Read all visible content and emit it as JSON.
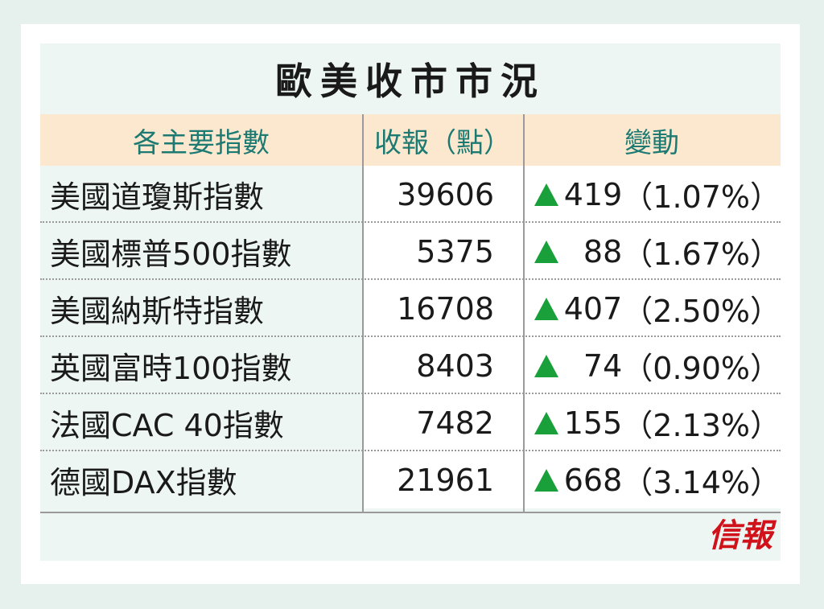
{
  "title": "歐美收市市況",
  "headers": {
    "index": "各主要指數",
    "close": "收報（點）",
    "change": "變動"
  },
  "rows": [
    {
      "name": "美國道瓊斯指數",
      "close": "39606",
      "change": "419",
      "pct": "（1.07%）"
    },
    {
      "name": "美國標普500指數",
      "close": "5375",
      "change": "88",
      "pct": "（1.67%）"
    },
    {
      "name": "美國納斯特指數",
      "close": "16708",
      "change": "407",
      "pct": "（2.50%）"
    },
    {
      "name": "英國富時100指數",
      "close": "8403",
      "change": "74",
      "pct": "（0.90%）"
    },
    {
      "name": "法國CAC 40指數",
      "close": "7482",
      "change": "155",
      "pct": "（2.13%）"
    },
    {
      "name": "德國DAX指數",
      "close": "21961",
      "change": "668",
      "pct": "（3.14%）"
    }
  ],
  "logo": "信報",
  "colors": {
    "up": "#1aa03a",
    "header_text": "#1c7a72",
    "header_bg": "#fbe8cf",
    "logo": "#d0121b"
  }
}
